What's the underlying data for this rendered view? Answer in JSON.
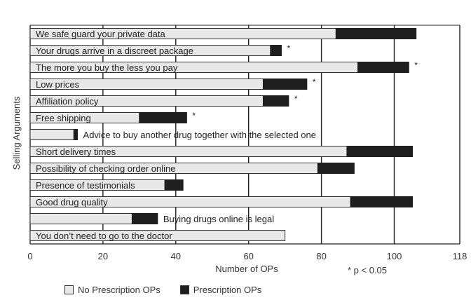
{
  "colors": {
    "no_rx": "#e8e8e8",
    "rx": "#1f1f1f",
    "grid": "#222222",
    "text": "#222222"
  },
  "chart_data": {
    "type": "bar",
    "orientation": "horizontal",
    "stacked": true,
    "title": "",
    "xlabel": "Number of OPs",
    "ylabel": "Selling Arguments",
    "xlim": [
      0,
      118
    ],
    "xticks": [
      0,
      20,
      40,
      60,
      80,
      100,
      118
    ],
    "grid": true,
    "footnote": "* p < 0.05",
    "legend_position": "bottom-left",
    "categories": [
      "We safe guard your private data",
      "Your drugs arrive in a discreet package",
      "The more you buy the less you pay",
      "Low prices",
      "Affiliation policy",
      "Free shipping",
      "Advice to buy another drug together with the selected one",
      "Short delivery times",
      "Possibility of checking order online",
      "Presence of testimonials",
      "Good drug quality",
      "Buying drugs online is legal",
      "You don’t need to go to the doctor"
    ],
    "label_outside": [
      false,
      false,
      false,
      false,
      false,
      false,
      true,
      false,
      false,
      false,
      false,
      true,
      false
    ],
    "significance": [
      "",
      "*",
      "*",
      "*",
      "*",
      "*",
      "",
      "",
      "",
      "",
      "",
      "",
      ""
    ],
    "series": [
      {
        "name": "No Prescription OPs",
        "values": [
          84,
          66,
          90,
          64,
          64,
          30,
          12,
          87,
          79,
          37,
          88,
          28,
          70
        ]
      },
      {
        "name": "Prescription OPs",
        "values": [
          22,
          3,
          14,
          12,
          7,
          13,
          1,
          18,
          10,
          5,
          17,
          7,
          0
        ]
      }
    ]
  }
}
